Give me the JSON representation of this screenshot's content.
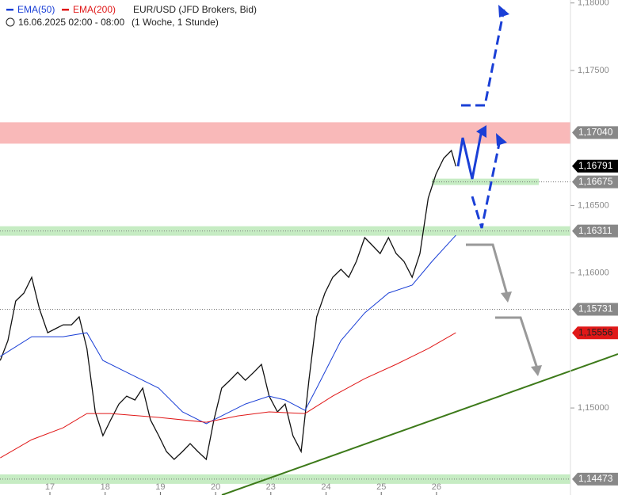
{
  "chart_data": {
    "type": "line",
    "legend": [
      {
        "name": "EMA(50)",
        "color": "#1a3fd6"
      },
      {
        "name": "EMA(200)",
        "color": "#e01818"
      }
    ],
    "instrument": "EUR/USD (JFD Brokers, Bid)",
    "date_range": "16.06.2025 02:00 - 08:00",
    "timeframe": "(1 Woche, 1 Stunde)",
    "xlim": [
      -0.904,
      9.426
    ],
    "xticks": [
      {
        "value": 0,
        "label": "17"
      },
      {
        "value": 1,
        "label": "18"
      },
      {
        "value": 2,
        "label": "19"
      },
      {
        "value": 3,
        "label": "20"
      },
      {
        "value": 4,
        "label": "23"
      },
      {
        "value": 5,
        "label": "24"
      },
      {
        "value": 6,
        "label": "25"
      },
      {
        "value": 7,
        "label": "26"
      }
    ],
    "ylim": [
      1.14355,
      1.18022
    ],
    "yticks": [
      {
        "value": 1.18,
        "label": "1,18000"
      },
      {
        "value": 1.175,
        "label": "1,17500"
      },
      {
        "value": 1.165,
        "label": "1,16500"
      },
      {
        "value": 1.16,
        "label": "1,16000"
      },
      {
        "value": 1.15,
        "label": "1,15000"
      }
    ],
    "series": [
      {
        "name": "EUR/USD",
        "color": "#111111",
        "x": [
          -0.9,
          -0.76,
          -0.62,
          -0.47,
          -0.33,
          -0.19,
          -0.04,
          0.1,
          0.24,
          0.39,
          0.53,
          0.67,
          0.82,
          0.96,
          1.1,
          1.25,
          1.39,
          1.54,
          1.68,
          1.82,
          1.97,
          2.11,
          2.25,
          2.4,
          2.54,
          2.68,
          2.83,
          2.97,
          3.11,
          3.26,
          3.4,
          3.54,
          3.69,
          3.83,
          3.97,
          4.12,
          4.26,
          4.4,
          4.55,
          4.69,
          4.83,
          4.98,
          5.12,
          5.27,
          5.41,
          5.55,
          5.7,
          5.84,
          5.98,
          6.13,
          6.27,
          6.41,
          6.56,
          6.7,
          6.85,
          6.99,
          7.13,
          7.27,
          7.35
        ],
        "values": [
          1.15352,
          1.15499,
          1.15792,
          1.15851,
          1.15968,
          1.15734,
          1.15557,
          1.15587,
          1.15616,
          1.15616,
          1.15675,
          1.1544,
          1.14971,
          1.14795,
          1.14912,
          1.15029,
          1.15088,
          1.15059,
          1.15147,
          1.14912,
          1.14795,
          1.14677,
          1.14619,
          1.14677,
          1.14736,
          1.14677,
          1.14619,
          1.14912,
          1.15147,
          1.15205,
          1.15264,
          1.15205,
          1.15264,
          1.15323,
          1.15088,
          1.14971,
          1.15029,
          1.14795,
          1.14677,
          1.15205,
          1.15675,
          1.15851,
          1.15968,
          1.16027,
          1.15968,
          1.16086,
          1.16262,
          1.16203,
          1.16144,
          1.16262,
          1.16144,
          1.16086,
          1.15968,
          1.16144,
          1.16555,
          1.16731,
          1.16849,
          1.16907,
          1.1679
        ]
      },
      {
        "name": "EMA(50)",
        "color": "#1a3fd6",
        "x": [
          -0.9,
          -0.33,
          0.24,
          0.67,
          0.96,
          1.39,
          1.97,
          2.4,
          2.83,
          3.11,
          3.54,
          3.97,
          4.26,
          4.62,
          4.83,
          5.27,
          5.7,
          6.13,
          6.56,
          6.92,
          7.35
        ],
        "values": [
          1.15381,
          1.15528,
          1.15528,
          1.15557,
          1.15352,
          1.15264,
          1.15147,
          1.14971,
          1.14883,
          1.14941,
          1.15029,
          1.15088,
          1.15059,
          1.14982,
          1.15147,
          1.15499,
          1.15704,
          1.15851,
          1.1591,
          1.16086,
          1.16279
        ]
      },
      {
        "name": "EMA(200)",
        "color": "#e01818",
        "x": [
          -0.9,
          -0.33,
          0.24,
          0.67,
          1.1,
          1.97,
          2.83,
          3.4,
          3.97,
          4.62,
          5.12,
          5.7,
          6.27,
          6.85,
          7.35
        ],
        "values": [
          1.1463,
          1.14765,
          1.14853,
          1.14959,
          1.14959,
          1.1493,
          1.14894,
          1.14941,
          1.14971,
          1.14959,
          1.15088,
          1.15217,
          1.15323,
          1.1544,
          1.15557
        ]
      }
    ],
    "levels": [
      {
        "value": 1.1704,
        "label": "1,17040",
        "style": "zone-red"
      },
      {
        "value": 1.16675,
        "label": "1,16675",
        "style": "zone-green-short"
      },
      {
        "value": 1.16311,
        "label": "1,16311",
        "style": "zone-green"
      },
      {
        "value": 1.15731,
        "label": "1,15731",
        "style": "dotted"
      },
      {
        "value": 1.14473,
        "label": "1,14473",
        "style": "zone-green"
      },
      {
        "value": 1.16791,
        "label": "1,16791",
        "style": "price"
      },
      {
        "value": 1.15556,
        "label": "1,15556",
        "style": "ema-red"
      }
    ]
  }
}
